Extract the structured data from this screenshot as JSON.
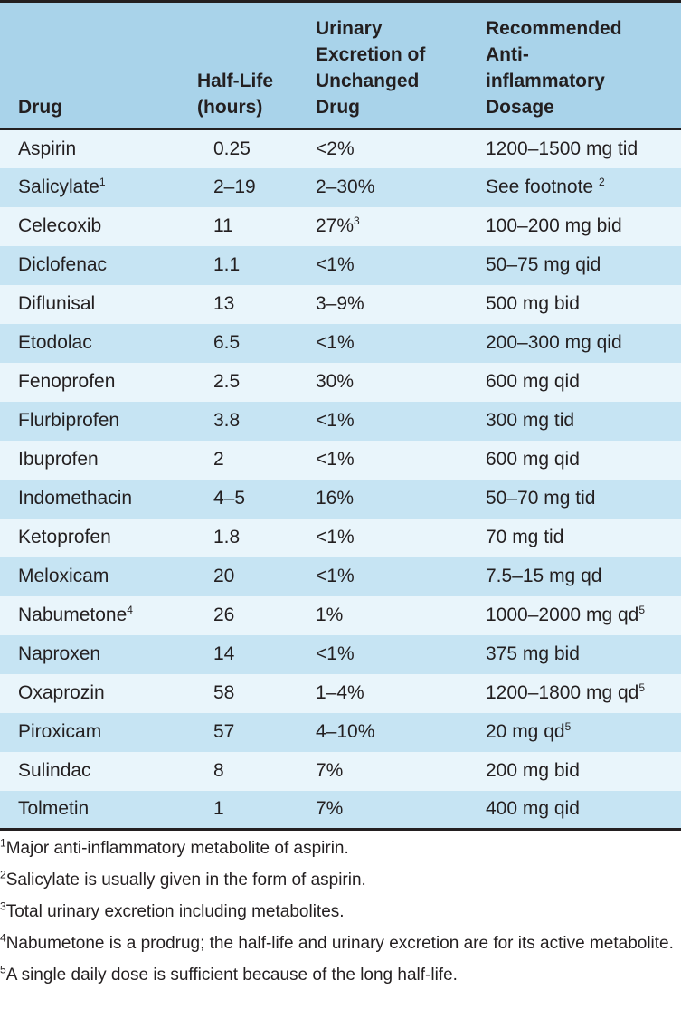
{
  "headers": {
    "drug": "Drug",
    "half_life": [
      "Half-Life",
      "(hours)"
    ],
    "urinary": [
      "Urinary",
      "Excretion of",
      "Unchanged",
      "Drug"
    ],
    "dosage": [
      "Recommended",
      "Anti-",
      "inflammatory",
      "Dosage"
    ]
  },
  "rows": [
    {
      "drug": "Aspirin",
      "drug_sup": "",
      "half_life": "0.25",
      "urinary": "<2%",
      "urinary_sup": "",
      "dosage": "1200–1500 mg tid",
      "dosage_sup": ""
    },
    {
      "drug": "Salicylate",
      "drug_sup": "1",
      "half_life": "2–19",
      "urinary": "2–30%",
      "urinary_sup": "",
      "dosage": "See footnote ",
      "dosage_sup": "2"
    },
    {
      "drug": "Celecoxib",
      "drug_sup": "",
      "half_life": "11",
      "urinary": "27%",
      "urinary_sup": "3",
      "dosage": "100–200 mg bid",
      "dosage_sup": ""
    },
    {
      "drug": "Diclofenac",
      "drug_sup": "",
      "half_life": "1.1",
      "urinary": "<1%",
      "urinary_sup": "",
      "dosage": "50–75 mg qid",
      "dosage_sup": ""
    },
    {
      "drug": "Diflunisal",
      "drug_sup": "",
      "half_life": "13",
      "urinary": "3–9%",
      "urinary_sup": "",
      "dosage": "500 mg bid",
      "dosage_sup": ""
    },
    {
      "drug": "Etodolac",
      "drug_sup": "",
      "half_life": "6.5",
      "urinary": "<1%",
      "urinary_sup": "",
      "dosage": "200–300 mg qid",
      "dosage_sup": ""
    },
    {
      "drug": "Fenoprofen",
      "drug_sup": "",
      "half_life": "2.5",
      "urinary": "30%",
      "urinary_sup": "",
      "dosage": "600 mg qid",
      "dosage_sup": ""
    },
    {
      "drug": "Flurbiprofen",
      "drug_sup": "",
      "half_life": "3.8",
      "urinary": "<1%",
      "urinary_sup": "",
      "dosage": "300 mg tid",
      "dosage_sup": ""
    },
    {
      "drug": "Ibuprofen",
      "drug_sup": "",
      "half_life": "2",
      "urinary": "<1%",
      "urinary_sup": "",
      "dosage": "600 mg qid",
      "dosage_sup": ""
    },
    {
      "drug": "Indomethacin",
      "drug_sup": "",
      "half_life": "4–5",
      "urinary": "16%",
      "urinary_sup": "",
      "dosage": "50–70 mg tid",
      "dosage_sup": ""
    },
    {
      "drug": "Ketoprofen",
      "drug_sup": "",
      "half_life": "1.8",
      "urinary": "<1%",
      "urinary_sup": "",
      "dosage": "70 mg tid",
      "dosage_sup": ""
    },
    {
      "drug": "Meloxicam",
      "drug_sup": "",
      "half_life": "20",
      "urinary": "<1%",
      "urinary_sup": "",
      "dosage": "7.5–15 mg qd",
      "dosage_sup": ""
    },
    {
      "drug": "Nabumetone",
      "drug_sup": "4",
      "half_life": "26",
      "urinary": "1%",
      "urinary_sup": "",
      "dosage": "1000–2000 mg qd",
      "dosage_sup": "5"
    },
    {
      "drug": "Naproxen",
      "drug_sup": "",
      "half_life": "14",
      "urinary": "<1%",
      "urinary_sup": "",
      "dosage": "375 mg bid",
      "dosage_sup": ""
    },
    {
      "drug": "Oxaprozin",
      "drug_sup": "",
      "half_life": "58",
      "urinary": "1–4%",
      "urinary_sup": "",
      "dosage": "1200–1800 mg qd",
      "dosage_sup": "5"
    },
    {
      "drug": "Piroxicam",
      "drug_sup": "",
      "half_life": "57",
      "urinary": "4–10%",
      "urinary_sup": "",
      "dosage": "20 mg qd",
      "dosage_sup": "5"
    },
    {
      "drug": "Sulindac",
      "drug_sup": "",
      "half_life": "8",
      "urinary": "7%",
      "urinary_sup": "",
      "dosage": "200 mg bid",
      "dosage_sup": ""
    },
    {
      "drug": "Tolmetin",
      "drug_sup": "",
      "half_life": "1",
      "urinary": "7%",
      "urinary_sup": "",
      "dosage": "400 mg qid",
      "dosage_sup": ""
    }
  ],
  "footnotes": [
    {
      "mark": "1",
      "text": "Major anti-inflammatory metabolite of aspirin."
    },
    {
      "mark": "2",
      "text": "Salicylate is usually given in the form of aspirin."
    },
    {
      "mark": "3",
      "text": "Total urinary excretion including metabolites."
    },
    {
      "mark": "4",
      "text": "Nabumetone is a prodrug; the half-life and urinary excretion are for its active metabolite."
    },
    {
      "mark": "5",
      "text": "A single daily dose is sufficient because of the long half-life."
    }
  ],
  "colors": {
    "header_bg": "#a9d3ea",
    "row_light": "#e9f5fb",
    "row_dark": "#c6e4f3",
    "text": "#231f20"
  }
}
